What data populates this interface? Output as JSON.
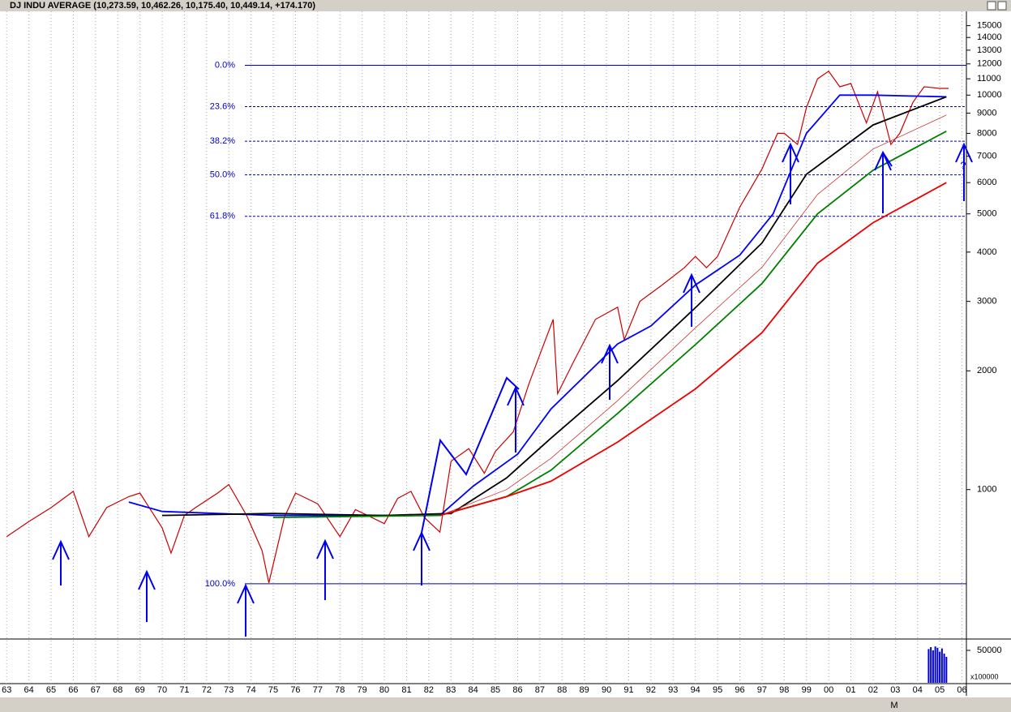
{
  "chart_data": {
    "type": "line",
    "title": "DJ INDU AVERAGE (10,273.59, 10,462.26, 10,175.40, 10,449.14, +174.170)",
    "log_scale": true,
    "grid": true,
    "xlim": [
      1962.7,
      2006.2
    ],
    "xticks": [
      {
        "value": 1963,
        "label": "63"
      },
      {
        "value": 1964,
        "label": "64"
      },
      {
        "value": 1965,
        "label": "65"
      },
      {
        "value": 1966,
        "label": "66"
      },
      {
        "value": 1967,
        "label": "67"
      },
      {
        "value": 1968,
        "label": "68"
      },
      {
        "value": 1969,
        "label": "69"
      },
      {
        "value": 1970,
        "label": "70"
      },
      {
        "value": 1971,
        "label": "71"
      },
      {
        "value": 1972,
        "label": "72"
      },
      {
        "value": 1973,
        "label": "73"
      },
      {
        "value": 1974,
        "label": "74"
      },
      {
        "value": 1975,
        "label": "75"
      },
      {
        "value": 1976,
        "label": "76"
      },
      {
        "value": 1977,
        "label": "77"
      },
      {
        "value": 1978,
        "label": "78"
      },
      {
        "value": 1979,
        "label": "79"
      },
      {
        "value": 1980,
        "label": "80"
      },
      {
        "value": 1981,
        "label": "81"
      },
      {
        "value": 1982,
        "label": "82"
      },
      {
        "value": 1983,
        "label": "83"
      },
      {
        "value": 1984,
        "label": "84"
      },
      {
        "value": 1985,
        "label": "85"
      },
      {
        "value": 1986,
        "label": "86"
      },
      {
        "value": 1987,
        "label": "87"
      },
      {
        "value": 1988,
        "label": "88"
      },
      {
        "value": 1989,
        "label": "89"
      },
      {
        "value": 1990,
        "label": "90"
      },
      {
        "value": 1991,
        "label": "91"
      },
      {
        "value": 1992,
        "label": "92"
      },
      {
        "value": 1993,
        "label": "93"
      },
      {
        "value": 1994,
        "label": "94"
      },
      {
        "value": 1995,
        "label": "95"
      },
      {
        "value": 1996,
        "label": "96"
      },
      {
        "value": 1997,
        "label": "97"
      },
      {
        "value": 1998,
        "label": "98"
      },
      {
        "value": 1999,
        "label": "99"
      },
      {
        "value": 2000,
        "label": "00"
      },
      {
        "value": 2001,
        "label": "01"
      },
      {
        "value": 2002,
        "label": "02"
      },
      {
        "value": 2003,
        "label": "03"
      },
      {
        "value": 2004,
        "label": "04"
      },
      {
        "value": 2005,
        "label": "05"
      },
      {
        "value": 2006,
        "label": "06"
      }
    ],
    "ylim": [
      420,
      16000
    ],
    "yticks": [
      15000,
      14000,
      13000,
      12000,
      11000,
      10000,
      9000,
      8000,
      7000,
      6000,
      5000,
      4000,
      3000,
      2000,
      1000
    ],
    "series": [
      {
        "color": "#cc0000",
        "x": [
          1963,
          1964,
          1965,
          1966,
          1966.7,
          1967.5,
          1968.5,
          1969,
          1970,
          1970.4,
          1971,
          1971.5,
          1972.5,
          1973,
          1973.8,
          1974.5,
          1974.8,
          1975.5,
          1976,
          1977,
          1978,
          1978.7,
          1980,
          1980.6,
          1981.2,
          1981.8,
          1982.5,
          1983,
          1983.8,
          1984.5,
          1985,
          1985.8,
          1986.5,
          1987,
          1987.6,
          1987.8,
          1988.5,
          1989.5,
          1990.5,
          1990.8,
          1991.5,
          1992.5,
          1993.5,
          1994,
          1994.5,
          1995,
          1996,
          1997,
          1997.7,
          1998,
          1998.6,
          1999,
          1999.5,
          2000,
          2000.5,
          2001,
          2001.7,
          2002.2,
          2002.8,
          2003.2,
          2003.8,
          2004.3,
          2005,
          2005.4
        ],
        "values": [
          760,
          830,
          900,
          990,
          760,
          900,
          960,
          980,
          800,
          690,
          860,
          900,
          980,
          1030,
          860,
          700,
          580,
          850,
          980,
          920,
          760,
          890,
          820,
          950,
          990,
          850,
          780,
          1180,
          1270,
          1100,
          1250,
          1400,
          1850,
          2200,
          2700,
          1750,
          2100,
          2700,
          2900,
          2400,
          3000,
          3300,
          3650,
          3900,
          3650,
          3900,
          5200,
          6500,
          8000,
          8000,
          7500,
          9300,
          11000,
          11500,
          10500,
          10700,
          8500,
          10200,
          7500,
          8000,
          9600,
          10500,
          10400,
          10400
        ]
      },
      {
        "color": "#0000ff",
        "x": [
          1968.5,
          1970,
          1975,
          1980,
          1982.5,
          1984,
          1986,
          1987.5,
          1990.5,
          1992,
          1994,
          1996,
          1997.5,
          1999,
          2000.5,
          2002,
          2005.3
        ],
        "values": [
          930,
          880,
          860,
          860,
          860,
          1020,
          1230,
          1600,
          2340,
          2600,
          3300,
          3930,
          5000,
          8000,
          10000,
          10000,
          9900
        ]
      },
      {
        "color": "#000000",
        "x": [
          1970,
          1975,
          1980,
          1983,
          1985.5,
          1987.5,
          1990.5,
          1994,
          1997,
          1999,
          2002,
          2005.3
        ],
        "values": [
          860,
          870,
          860,
          870,
          1070,
          1350,
          1890,
          2890,
          4220,
          6300,
          8400,
          9900
        ]
      },
      {
        "color": "#cc3333",
        "x": [
          1982.5,
          1985.5,
          1987.5,
          1990.5,
          1994,
          1997,
          1999.5,
          2002,
          2005.3
        ],
        "values": [
          860,
          1000,
          1200,
          1680,
          2570,
          3660,
          5600,
          7300,
          8900
        ]
      },
      {
        "color": "#008000",
        "x": [
          1975,
          1982.5,
          1985.5,
          1987.5,
          1990.5,
          1994,
          1997,
          1999.5,
          2002,
          2005.3
        ],
        "values": [
          850,
          860,
          960,
          1120,
          1560,
          2330,
          3330,
          5000,
          6450,
          8100
        ]
      },
      {
        "color": "#ee0000",
        "x": [
          1982.5,
          1985.5,
          1987.5,
          1990.5,
          1994,
          1997,
          1999.5,
          2002,
          2005.3
        ],
        "values": [
          860,
          960,
          1050,
          1320,
          1800,
          2500,
          3750,
          4750,
          6000
        ]
      }
    ],
    "fib_levels": [
      {
        "label": "0.0%",
        "value": 11900,
        "dashed": false
      },
      {
        "label": "23.6%",
        "value": 9350,
        "dashed": true
      },
      {
        "label": "38.2%",
        "value": 7640,
        "dashed": true
      },
      {
        "label": "50.0%",
        "value": 6280,
        "dashed": true
      },
      {
        "label": "61.8%",
        "value": 4930,
        "dashed": true
      },
      {
        "label": "100.0%",
        "value": 577,
        "dashed": false
      }
    ],
    "annotation": "?",
    "volume": {
      "color": "#0000cc",
      "x": [
        2004.5,
        2004.6,
        2004.7,
        2004.8,
        2004.9,
        2005.0,
        2005.1,
        2005.2,
        2005.3
      ],
      "values": [
        52000,
        55000,
        50000,
        56000,
        54000,
        48000,
        53000,
        45000,
        40000
      ],
      "ylim": [
        0,
        65000
      ],
      "yticks": [
        50000
      ],
      "unit": "x100000"
    },
    "toolbar": "M"
  }
}
